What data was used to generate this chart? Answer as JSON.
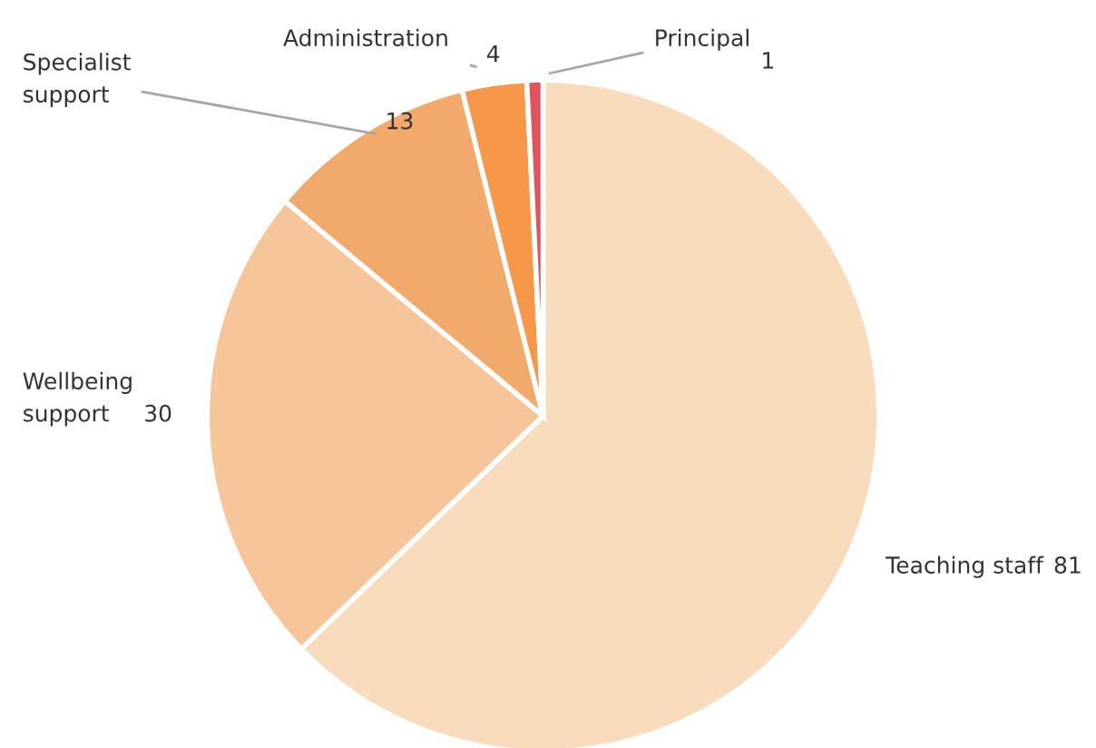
{
  "chart_data": {
    "type": "pie",
    "categories": [
      "Teaching staff",
      "Wellbeing support",
      "Specialist support",
      "Administration",
      "Principal"
    ],
    "values": [
      81,
      30,
      13,
      4,
      1
    ],
    "colors": [
      "#f9dbbd",
      "#f7c59a",
      "#f1a96c",
      "#f7974a",
      "#e2545b"
    ],
    "data_labels": true,
    "legend": false
  }
}
